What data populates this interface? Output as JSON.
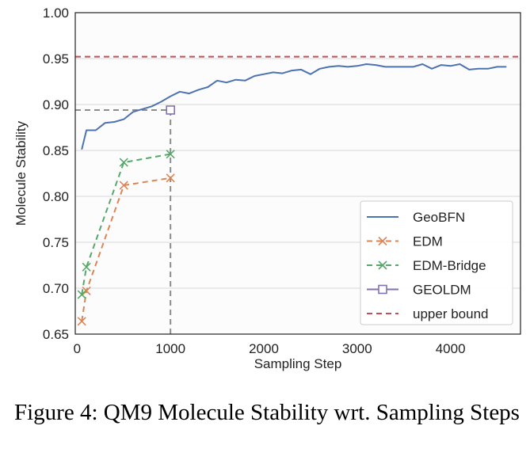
{
  "caption": "Figure 4: QM9 Molecule Stability wrt. Sampling Steps",
  "chart_data": {
    "type": "line",
    "title": "",
    "xlabel": "Sampling Step",
    "ylabel": "Molecule Stability",
    "xlim": [
      -20,
      4750
    ],
    "ylim": [
      0.65,
      1.0
    ],
    "xticks": [
      0,
      1000,
      2000,
      3000,
      4000
    ],
    "xtick_labels": [
      "0",
      "1000",
      "2000",
      "3000",
      "4000"
    ],
    "yticks": [
      0.65,
      0.7,
      0.75,
      0.8,
      0.85,
      0.9,
      0.95,
      1.0
    ],
    "ytick_labels": [
      "0.65",
      "0.70",
      "0.75",
      "0.80",
      "0.85",
      "0.90",
      "0.95",
      "1.00"
    ],
    "grid": "y",
    "legend_position": "lower-right",
    "series": [
      {
        "name": "GeoBFN",
        "color": "#4c72b0",
        "style": "solid",
        "marker": "none",
        "x": [
          50,
          100,
          200,
          300,
          400,
          500,
          600,
          700,
          800,
          900,
          1000,
          1100,
          1200,
          1300,
          1400,
          1500,
          1600,
          1700,
          1800,
          1900,
          2000,
          2100,
          2200,
          2300,
          2400,
          2500,
          2600,
          2700,
          2800,
          2900,
          3000,
          3100,
          3200,
          3300,
          3400,
          3500,
          3600,
          3700,
          3800,
          3900,
          4000,
          4100,
          4200,
          4300,
          4400,
          4500,
          4600
        ],
        "y": [
          0.851,
          0.872,
          0.872,
          0.88,
          0.881,
          0.884,
          0.892,
          0.895,
          0.898,
          0.903,
          0.909,
          0.914,
          0.912,
          0.916,
          0.919,
          0.926,
          0.924,
          0.927,
          0.926,
          0.931,
          0.933,
          0.935,
          0.934,
          0.937,
          0.938,
          0.933,
          0.939,
          0.941,
          0.942,
          0.941,
          0.942,
          0.944,
          0.943,
          0.941,
          0.941,
          0.941,
          0.941,
          0.944,
          0.939,
          0.943,
          0.942,
          0.944,
          0.938,
          0.939,
          0.939,
          0.941,
          0.941
        ]
      },
      {
        "name": "EDM",
        "color": "#dd8452",
        "style": "dashed",
        "marker": "x",
        "x": [
          50,
          100,
          500,
          1000
        ],
        "y": [
          0.664,
          0.697,
          0.812,
          0.82
        ]
      },
      {
        "name": "EDM-Bridge",
        "color": "#55a868",
        "style": "dashed",
        "marker": "x",
        "x": [
          50,
          100,
          500,
          1000
        ],
        "y": [
          0.693,
          0.723,
          0.837,
          0.846
        ]
      },
      {
        "name": "GEOLDM",
        "color": "#8172b3",
        "style": "none",
        "marker": "square",
        "x": [
          1000
        ],
        "y": [
          0.894
        ]
      },
      {
        "name": "upper bound",
        "color": "#c44e52",
        "style": "dashed",
        "marker": "none",
        "y_constant": 0.952
      }
    ],
    "reference_lines": {
      "color": "#8c8c8c",
      "point": {
        "x": 1000,
        "y": 0.894
      }
    }
  }
}
